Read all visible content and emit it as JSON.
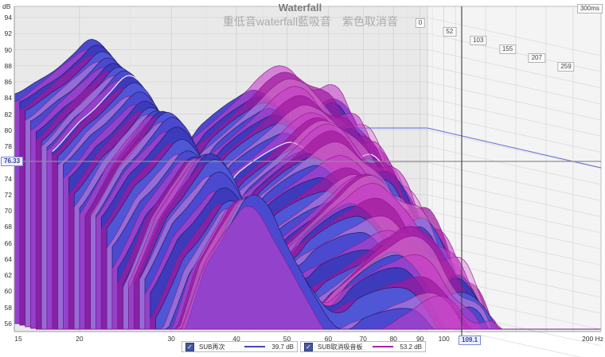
{
  "header": {
    "title": "Waterfall",
    "subtitle": "重低音waterfall藍吸音　紫色取消音"
  },
  "axes": {
    "y_unit": "dB",
    "y_min": 56,
    "y_max": 94,
    "y_ticks": [
      94,
      92,
      90,
      88,
      86,
      84,
      82,
      80,
      78,
      76,
      74,
      72,
      70,
      68,
      66,
      64,
      62,
      60,
      58,
      56
    ],
    "x_scale": "log",
    "x_min": 15,
    "x_max": 200,
    "x_ticks": [
      15,
      20,
      30,
      40,
      50,
      60,
      70,
      80,
      90,
      100
    ],
    "x_minor_ticks": [
      25,
      35,
      45,
      55,
      65,
      75,
      85,
      95
    ],
    "x_end_label": "200 Hz",
    "time_span_ms": 300,
    "time_ticks": [
      0,
      52,
      103,
      155,
      207,
      259
    ],
    "time_end_label": "300ms"
  },
  "cursor": {
    "db_value": "76.33",
    "freq_value": "109.1"
  },
  "legend": [
    {
      "label": "SUB再次",
      "value": "39.7 dB",
      "color": "#4646bd",
      "checked": true
    },
    {
      "label": "SUB取消吸音板",
      "value": "53.2 dB",
      "color": "#aa22aa",
      "checked": true
    }
  ],
  "chart_data": {
    "type": "waterfall",
    "title": "Waterfall",
    "xlabel": "Hz",
    "ylabel": "dB",
    "x_range_hz": [
      15,
      200
    ],
    "y_range_db": [
      56,
      94
    ],
    "time_range_ms": [
      0,
      300
    ],
    "slices": 31,
    "floor_db": 56,
    "highlight_slice": 7,
    "series": [
      {
        "name": "SUB再次",
        "color": "#4646bd",
        "stroke": "#1a1a5e",
        "fills": [
          "#4a49cf",
          "#3d3abc",
          "#4f57d6"
        ],
        "ripple": 0.9,
        "phase": 0.0,
        "ridge_db": [
          [
            15,
            84.5
          ],
          [
            16.5,
            86
          ],
          [
            18,
            87.5
          ],
          [
            19.5,
            89.5
          ],
          [
            21,
            91.3
          ],
          [
            22.5,
            90
          ],
          [
            24,
            86.5
          ],
          [
            26,
            83
          ],
          [
            28,
            80
          ],
          [
            30,
            78
          ],
          [
            32,
            78.3
          ],
          [
            34,
            80.5
          ],
          [
            37,
            82.5
          ],
          [
            40,
            84
          ],
          [
            43,
            85
          ],
          [
            46,
            84.2
          ],
          [
            49,
            82.5
          ],
          [
            52,
            81
          ],
          [
            55,
            82
          ],
          [
            58,
            83.5
          ],
          [
            61,
            83.6
          ],
          [
            64,
            82.5
          ],
          [
            67,
            81
          ],
          [
            70,
            79
          ],
          [
            73,
            76.5
          ],
          [
            76,
            74
          ],
          [
            80,
            71
          ],
          [
            84,
            68
          ],
          [
            88,
            65
          ],
          [
            92,
            62.5
          ],
          [
            96,
            60.5
          ],
          [
            100,
            58.5
          ],
          [
            105,
            57
          ],
          [
            110,
            55.8
          ],
          [
            116,
            55
          ]
        ]
      },
      {
        "name": "SUB取消吸音板",
        "color": "#aa22aa",
        "stroke": "#8c1890",
        "fills": [
          "rgba(196,62,200,0.60)",
          "rgba(160,26,158,0.72)",
          "rgba(222,130,214,0.50)"
        ],
        "ripple": 1.9,
        "phase": 0.9,
        "ridge_db": [
          [
            15,
            83.5
          ],
          [
            17,
            86
          ],
          [
            19,
            88.5
          ],
          [
            21,
            90
          ],
          [
            23,
            87
          ],
          [
            25,
            84
          ],
          [
            27,
            81
          ],
          [
            29,
            78.5
          ],
          [
            31,
            77.5
          ],
          [
            33,
            79
          ],
          [
            36,
            81
          ],
          [
            39,
            83
          ],
          [
            42,
            85
          ],
          [
            45,
            87
          ],
          [
            48,
            88
          ],
          [
            51,
            87.5
          ],
          [
            54,
            86
          ],
          [
            57,
            85
          ],
          [
            60,
            84.5
          ],
          [
            63,
            83.5
          ],
          [
            66,
            82
          ],
          [
            69,
            80.5
          ],
          [
            72,
            78.5
          ],
          [
            75,
            76.5
          ],
          [
            78,
            74.5
          ],
          [
            82,
            72
          ],
          [
            86,
            69
          ],
          [
            90,
            66
          ],
          [
            94,
            63.5
          ],
          [
            98,
            61
          ],
          [
            103,
            58.5
          ],
          [
            108,
            57
          ],
          [
            113,
            55.8
          ],
          [
            120,
            55
          ]
        ]
      }
    ],
    "decay_db_per_slice": [
      [
        14,
        1.0
      ],
      [
        17,
        0.62
      ],
      [
        20,
        0.5
      ],
      [
        25,
        0.55
      ],
      [
        40,
        0.62
      ],
      [
        55,
        0.75
      ],
      [
        70,
        0.88
      ],
      [
        90,
        1.0
      ],
      [
        125,
        1.1
      ]
    ]
  }
}
